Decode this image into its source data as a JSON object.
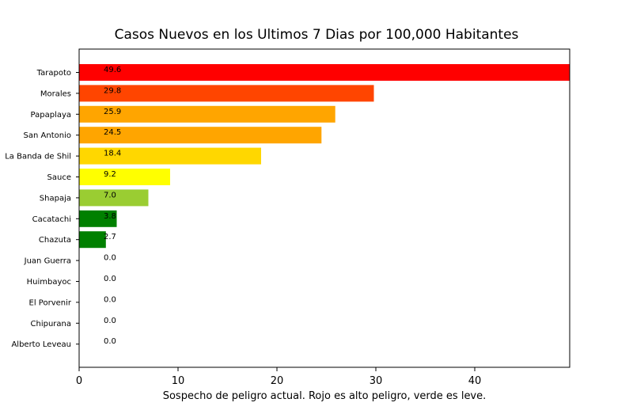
{
  "chart_data": {
    "type": "bar",
    "orientation": "horizontal",
    "title": "Casos Nuevos en los Ultimos 7 Dias por 100,000 Habitantes",
    "xlabel": "Sospecho de peligro actual. Rojo es alto peligro, verde es leve.",
    "ylabel": "",
    "xlim": [
      0,
      49.6
    ],
    "xticks": [
      0,
      10,
      20,
      30,
      40
    ],
    "grid": false,
    "categories": [
      "Tarapoto",
      "Morales",
      "Papaplaya",
      "San Antonio",
      "La Banda de Shil",
      "Sauce",
      "Shapaja",
      "Cacatachi",
      "Chazuta",
      "Juan Guerra",
      "Huimbayoc",
      "El Porvenir",
      "Chipurana",
      "Alberto Leveau"
    ],
    "values": [
      49.6,
      29.8,
      25.9,
      24.5,
      18.4,
      9.2,
      7.0,
      3.8,
      2.7,
      0.0,
      0.0,
      0.0,
      0.0,
      0.0
    ],
    "value_labels": [
      "49.6",
      "29.8",
      "25.9",
      "24.5",
      "18.4",
      "9.2",
      "7.0",
      "3.8",
      "2.7",
      "0.0",
      "0.0",
      "0.0",
      "0.0",
      "0.0"
    ],
    "colors": [
      "#ff0000",
      "#ff4500",
      "#ffa500",
      "#ffa500",
      "#ffd700",
      "#ffff00",
      "#9acd32",
      "#008000",
      "#008000",
      "#008000",
      "#008000",
      "#008000",
      "#008000",
      "#008000"
    ]
  }
}
